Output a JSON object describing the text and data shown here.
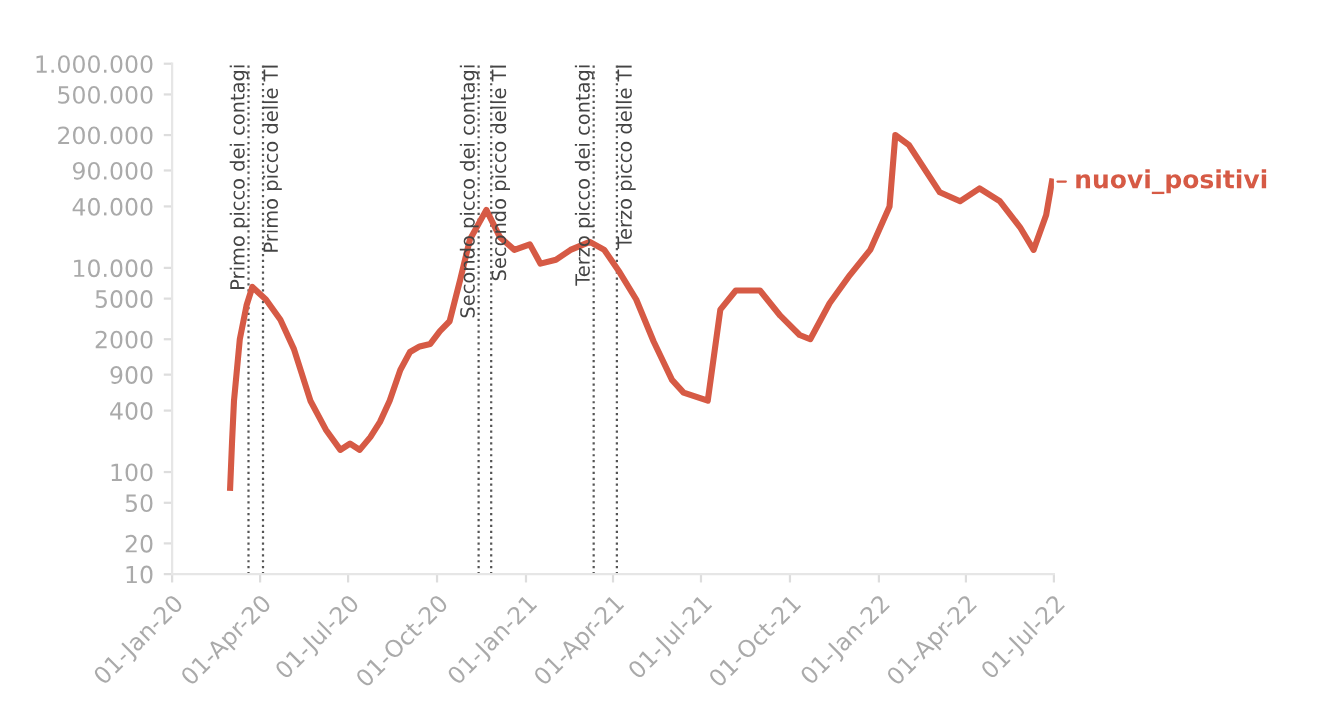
{
  "chart_data": {
    "type": "line",
    "log": true,
    "grid": false,
    "marker": "none",
    "line_style": "solid",
    "xlim": [
      "2020-01-01",
      "2022-07-01"
    ],
    "xticks": [
      {
        "value": "2020-01-01",
        "label": "01-Jan-20"
      },
      {
        "value": "2020-04-01",
        "label": "01-Apr-20"
      },
      {
        "value": "2020-07-01",
        "label": "01-Jul-20"
      },
      {
        "value": "2020-10-01",
        "label": "01-Oct-20"
      },
      {
        "value": "2021-01-01",
        "label": "01-Jan-21"
      },
      {
        "value": "2021-04-01",
        "label": "01-Apr-21"
      },
      {
        "value": "2021-07-01",
        "label": "01-Jul-21"
      },
      {
        "value": "2021-10-01",
        "label": "01-Oct-21"
      },
      {
        "value": "2022-01-01",
        "label": "01-Jan-22"
      },
      {
        "value": "2022-04-01",
        "label": "01-Apr-22"
      },
      {
        "value": "2022-07-01",
        "label": "01-Jul-22"
      }
    ],
    "ylim": [
      10,
      1000000
    ],
    "yticks": [
      {
        "value": 10,
        "label": "10"
      },
      {
        "value": 20,
        "label": "20"
      },
      {
        "value": 50,
        "label": "50"
      },
      {
        "value": 100,
        "label": "100"
      },
      {
        "value": 400,
        "label": "400"
      },
      {
        "value": 900,
        "label": "900"
      },
      {
        "value": 2000,
        "label": "2000"
      },
      {
        "value": 5000,
        "label": "5000"
      },
      {
        "value": 10000,
        "label": "10.000"
      },
      {
        "value": 40000,
        "label": "40.000"
      },
      {
        "value": 90000,
        "label": "90.000"
      },
      {
        "value": 200000,
        "label": "200.000"
      },
      {
        "value": 500000,
        "label": "500.000"
      },
      {
        "value": 1000000,
        "label": "1.000.000"
      }
    ],
    "ref_lines": [
      {
        "axis": "x",
        "value": "2020-03-20",
        "label": "Primo picco dei contagi",
        "color": "#555555",
        "line_style": "dotted"
      },
      {
        "axis": "x",
        "value": "2020-04-04",
        "label": "Primo picco delle TI",
        "color": "#555555",
        "line_style": "dotted"
      },
      {
        "axis": "x",
        "value": "2020-11-13",
        "label": "Secondo picco dei contagi",
        "color": "#555555",
        "line_style": "dotted"
      },
      {
        "axis": "x",
        "value": "2020-11-26",
        "label": "Secondo picco delle TI",
        "color": "#555555",
        "line_style": "dotted"
      },
      {
        "axis": "x",
        "value": "2021-03-12",
        "label": "Terzo picco dei contagi",
        "color": "#555555",
        "line_style": "dotted"
      },
      {
        "axis": "x",
        "value": "2021-04-05",
        "label": "Terzo picco delle TI",
        "color": "#555555",
        "line_style": "dotted"
      }
    ],
    "series": [
      {
        "name": "nuovi_positivi",
        "color": "#d65a45",
        "x": [
          "2020-03-01",
          "2020-03-03",
          "2020-03-05",
          "2020-03-11",
          "2020-03-18",
          "2020-03-24",
          "2020-04-07",
          "2020-04-22",
          "2020-05-06",
          "2020-05-23",
          "2020-06-08",
          "2020-06-23",
          "2020-07-03",
          "2020-07-13",
          "2020-07-24",
          "2020-08-03",
          "2020-08-13",
          "2020-08-24",
          "2020-09-03",
          "2020-09-13",
          "2020-09-24",
          "2020-10-04",
          "2020-10-14",
          "2020-10-25",
          "2020-11-04",
          "2020-11-21",
          "2020-12-05",
          "2020-12-20",
          "2021-01-05",
          "2021-01-16",
          "2021-02-01",
          "2021-02-16",
          "2021-03-08",
          "2021-03-23",
          "2021-04-08",
          "2021-04-25",
          "2021-05-13",
          "2021-06-01",
          "2021-06-13",
          "2021-07-08",
          "2021-07-21",
          "2021-08-06",
          "2021-08-31",
          "2021-09-21",
          "2021-10-11",
          "2021-10-22",
          "2021-11-11",
          "2021-12-02",
          "2021-12-23",
          "2022-01-12",
          "2022-01-18",
          "2022-02-01",
          "2022-03-05",
          "2022-03-26",
          "2022-04-15",
          "2022-05-06",
          "2022-05-27",
          "2022-06-10",
          "2022-06-23",
          "2022-06-29"
        ],
        "values": [
          70,
          200,
          500,
          2000,
          4300,
          6500,
          4900,
          3100,
          1600,
          500,
          260,
          165,
          190,
          165,
          220,
          310,
          500,
          1000,
          1500,
          1700,
          1800,
          2400,
          3000,
          7700,
          19000,
          37000,
          20000,
          15000,
          17000,
          11000,
          12000,
          15000,
          18000,
          15000,
          9000,
          4900,
          1900,
          800,
          600,
          500,
          3900,
          6000,
          6000,
          3400,
          2200,
          2000,
          4500,
          8500,
          15000,
          40000,
          200000,
          160000,
          55000,
          45000,
          60000,
          45000,
          25000,
          15000,
          33000,
          70000
        ]
      }
    ]
  }
}
